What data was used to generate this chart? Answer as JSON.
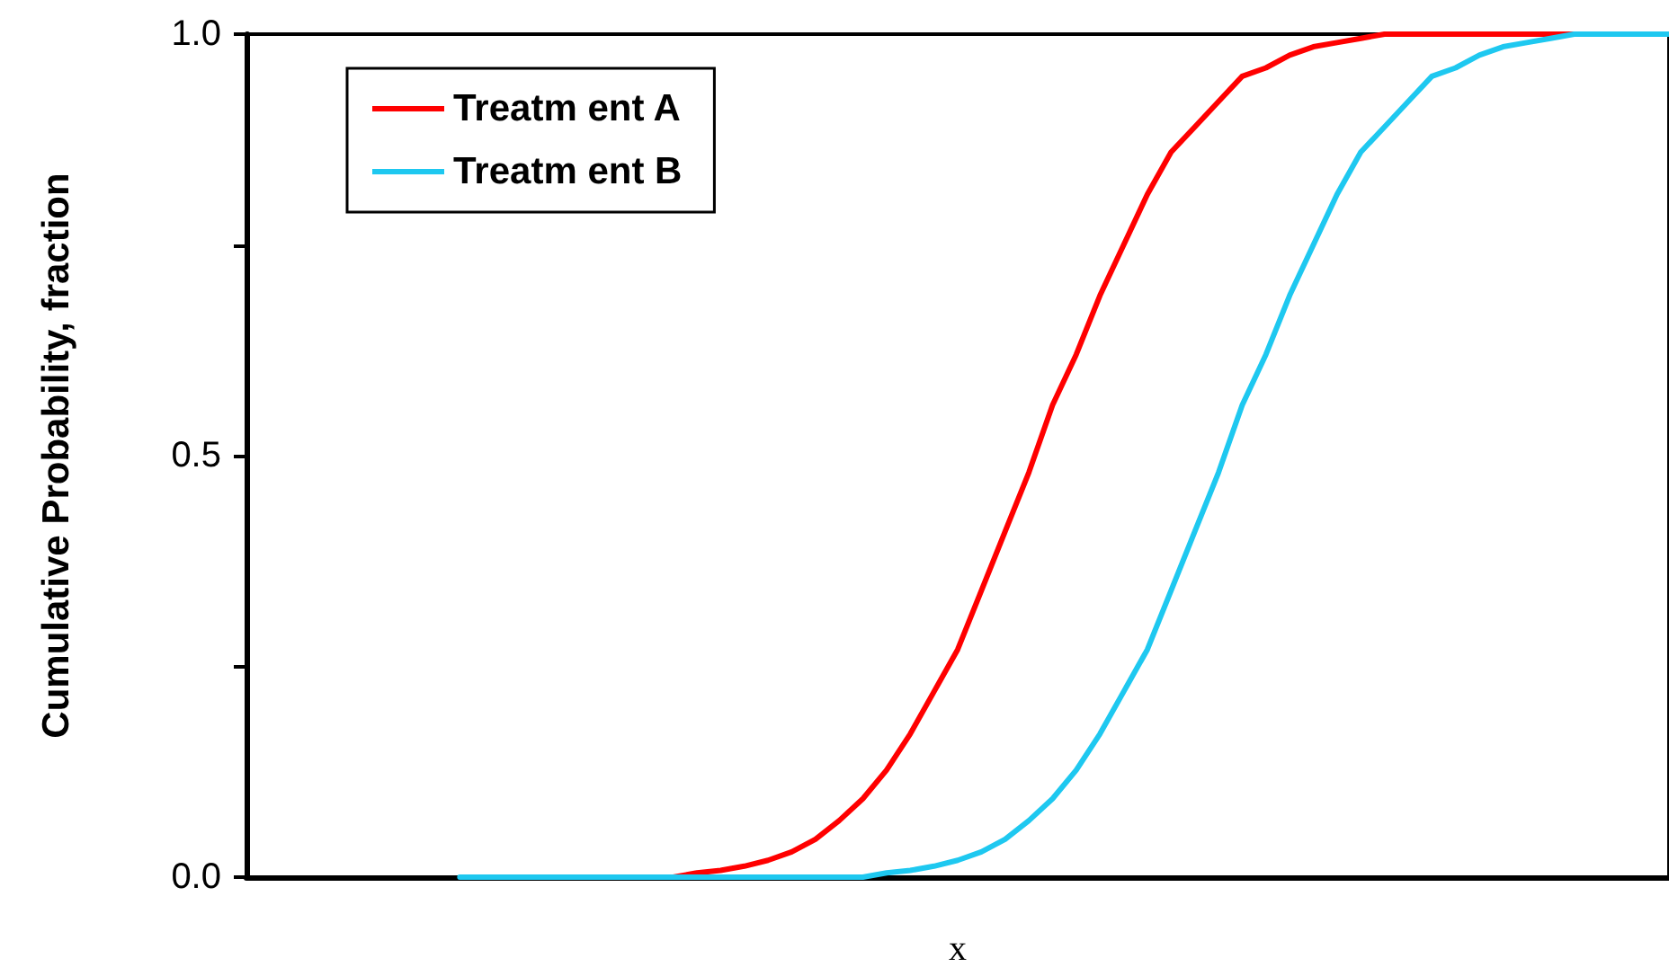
{
  "chart_data": {
    "type": "line",
    "xlabel": "x",
    "ylabel": "Cumulative Probability, fraction",
    "categories": [
      null,
      null,
      null,
      null,
      null,
      null,
      null,
      null,
      null,
      null,
      null,
      null,
      null,
      null,
      null,
      null,
      null,
      null,
      null,
      null,
      null,
      null,
      null,
      null,
      null,
      null,
      null,
      null,
      null,
      null,
      null,
      null,
      null,
      null,
      null,
      null,
      null,
      null,
      null,
      null,
      null,
      null,
      null,
      null,
      null,
      null,
      null,
      null,
      null,
      null,
      null,
      null,
      null,
      null,
      null,
      null,
      null,
      null,
      null,
      null,
      null
    ],
    "series": [
      {
        "name": "Treatm ent A",
        "color": "#ff0000",
        "values": [
          null,
          null,
          null,
          null,
          null,
          null,
          null,
          null,
          null,
          null,
          null,
          null,
          null,
          null,
          null,
          null,
          null,
          0,
          0,
          0.005,
          0.008,
          0.013,
          0.02,
          0.03,
          0.045,
          0.067,
          0.093,
          0.127,
          0.17,
          0.22,
          0.27,
          0.34,
          0.41,
          0.48,
          0.56,
          0.62,
          0.69,
          0.75,
          0.81,
          0.86,
          0.89,
          0.92,
          0.95,
          0.96,
          0.975,
          0.985,
          0.99,
          0.995,
          1,
          1,
          1,
          1,
          1,
          1,
          1,
          1,
          1,
          null,
          null,
          null,
          null
        ]
      },
      {
        "name": "Treatm ent B",
        "color": "#1ec8f0",
        "values": [
          null,
          null,
          null,
          null,
          null,
          null,
          null,
          null,
          null,
          0,
          0,
          0,
          0,
          0,
          0,
          0,
          0,
          0,
          0,
          0,
          0,
          0,
          0,
          0,
          0,
          0,
          0,
          0.005,
          0.008,
          0.013,
          0.02,
          0.03,
          0.045,
          0.067,
          0.093,
          0.127,
          0.17,
          0.22,
          0.27,
          0.34,
          0.41,
          0.48,
          0.56,
          0.62,
          0.69,
          0.75,
          0.81,
          0.86,
          0.89,
          0.92,
          0.95,
          0.96,
          0.975,
          0.985,
          0.99,
          0.995,
          1,
          1,
          1,
          1,
          1
        ]
      }
    ],
    "ylim": [
      0,
      1
    ],
    "yticks": [
      {
        "value": 0,
        "label": "0.0"
      },
      {
        "value": 0.25,
        "label": null
      },
      {
        "value": 0.5,
        "label": "0.5"
      },
      {
        "value": 0.75,
        "label": null
      },
      {
        "value": 1,
        "label": "1.0"
      }
    ],
    "tick_labels": "y",
    "grid": false,
    "legend": "top left",
    "marker": "none",
    "line_style": "solid"
  }
}
